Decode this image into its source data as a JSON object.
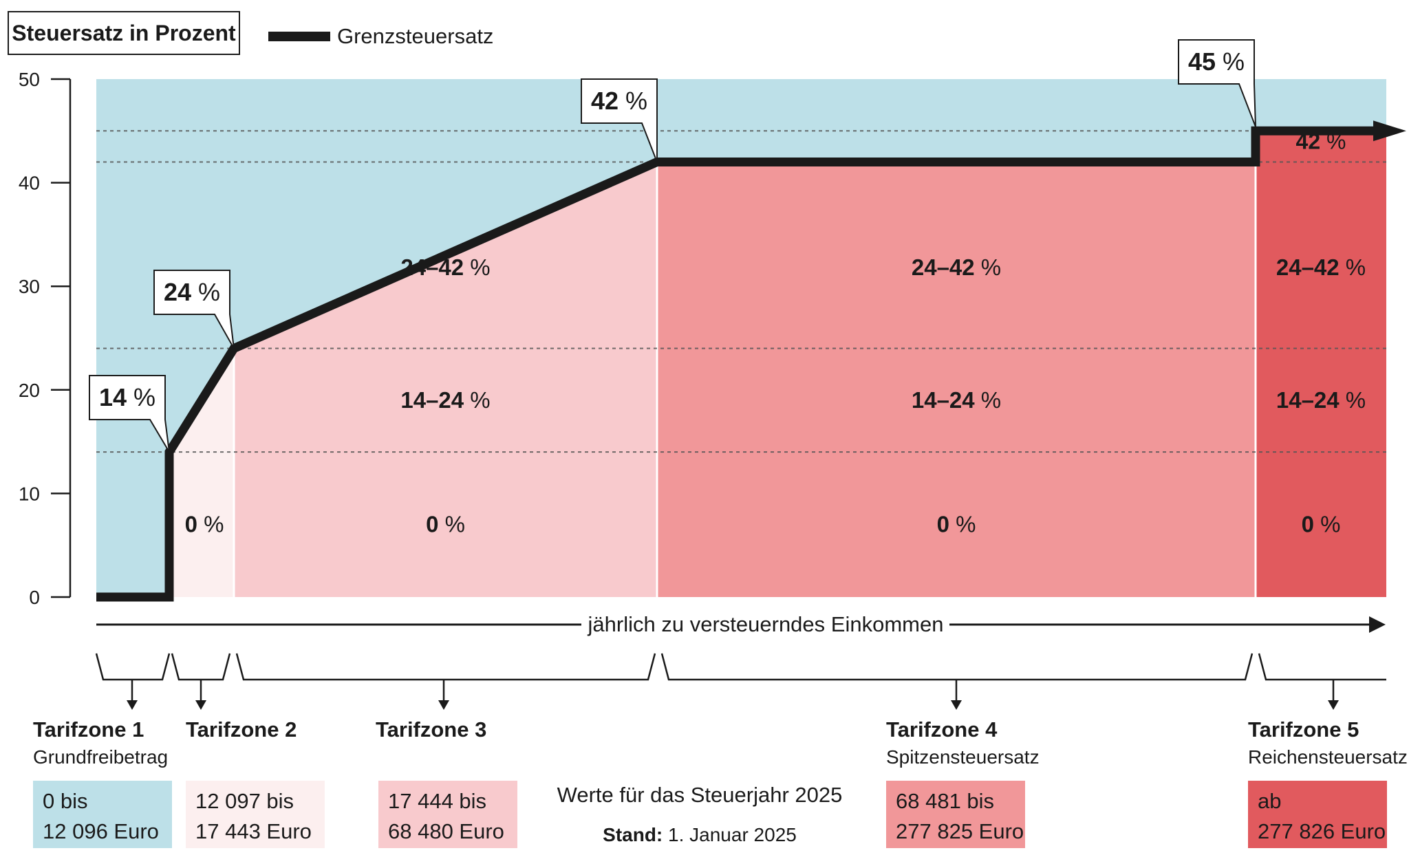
{
  "chart_data": {
    "type": "line",
    "title": "Steuersatz in Prozent",
    "legend": {
      "series_name": "Grenzsteuersatz",
      "placement": "top-left"
    },
    "ylim": [
      0,
      50
    ],
    "y_ticks": [
      "0",
      "10",
      "20",
      "30",
      "40",
      "50"
    ],
    "xlabel": "jährlich zu versteuerndes Einkommen",
    "grid": "dashed reference lines at 14, 24, 42 and 45 percent",
    "series": [
      {
        "name": "Grenzsteuersatz",
        "points": [
          {
            "income": 0,
            "rate": 0
          },
          {
            "income": 12096,
            "rate": 0
          },
          {
            "income": 12097,
            "rate": 14
          },
          {
            "income": 17443,
            "rate": 24
          },
          {
            "income": 68480,
            "rate": 42
          },
          {
            "income": 277825,
            "rate": 42
          },
          {
            "income": 277826,
            "rate": 45
          }
        ]
      }
    ],
    "callouts": [
      {
        "bold": "14",
        "unit": " %"
      },
      {
        "bold": "24",
        "unit": " %"
      },
      {
        "bold": "42",
        "unit": " %"
      },
      {
        "bold": "45",
        "unit": " %"
      }
    ],
    "zones": [
      {
        "name": "Tarifzone 1",
        "subtitle": "Grundfreibetrag",
        "range_line1": "0 bis",
        "range_line2": "12 096 Euro",
        "color": "#bde0e8",
        "segment_labels": []
      },
      {
        "name": "Tarifzone 2",
        "subtitle": "",
        "range_line1": "12 097 bis",
        "range_line2": "17 443 Euro",
        "color": "#fcefef",
        "segment_labels": [
          {
            "bold": "0",
            "unit": " %"
          }
        ]
      },
      {
        "name": "Tarifzone 3",
        "subtitle": "",
        "range_line1": "17 444 bis",
        "range_line2": "68 480 Euro",
        "color": "#f8cacd",
        "segment_labels": [
          {
            "bold": "24–42",
            "unit": " %"
          },
          {
            "bold": "14–24",
            "unit": " %"
          },
          {
            "bold": "0",
            "unit": " %"
          }
        ]
      },
      {
        "name": "Tarifzone 4",
        "subtitle": "Spitzensteuersatz",
        "range_line1": "68 481 bis",
        "range_line2": "277 825 Euro",
        "color": "#f19799",
        "segment_labels": [
          {
            "bold": "24–42",
            "unit": " %"
          },
          {
            "bold": "14–24",
            "unit": " %"
          },
          {
            "bold": "0",
            "unit": " %"
          }
        ]
      },
      {
        "name": "Tarifzone 5",
        "subtitle": "Reichensteuersatz",
        "range_line1": "ab",
        "range_line2": "277 826 Euro",
        "color": "#e15a5e",
        "segment_labels": [
          {
            "bold": "42",
            "unit": " %"
          },
          {
            "bold": "24–42",
            "unit": " %"
          },
          {
            "bold": "14–24",
            "unit": " %"
          },
          {
            "bold": "0",
            "unit": " %"
          }
        ]
      }
    ]
  },
  "footer": {
    "note": "Werte für das Steuerjahr 2025",
    "stand_label": "Stand:",
    "stand_value": " 1. Januar 2025"
  },
  "colors": {
    "background_area": "#bde0e8",
    "line": "#1a1a1a",
    "grid": "#555555"
  }
}
